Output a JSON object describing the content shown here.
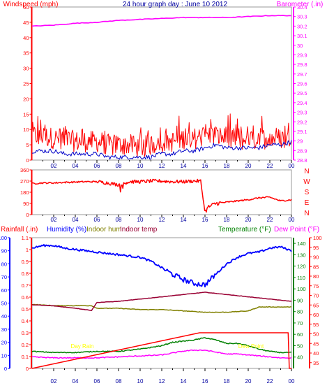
{
  "title": "24 hour graph day : June 10 2012",
  "colors": {
    "background": "#ffffff",
    "frame": "#9a9a9a",
    "wind": "#ff0000",
    "gust_base": "#0000c8",
    "barometer": "#ff00ff",
    "direction": "#ff0000",
    "rain_axis": "#ff0000",
    "humidity": "#0000ff",
    "indoor_hum": "#808000",
    "indoor_temp": "#990033",
    "temperature": "#008000",
    "dewpoint": "#ff00ff",
    "rain_rate": "#ff0000",
    "day_label": "#ffff00",
    "blue_axis": "#0000ff"
  },
  "chart_data": [
    {
      "type": "line",
      "name": "wind-barometer",
      "title": "24 hour graph day : June 10 2012",
      "xlabel": "",
      "ylabel_left": "Windspeed (mph)",
      "ylabel_right": "Barometer (.in)",
      "x_ticks": [
        "02",
        "04",
        "06",
        "08",
        "10",
        "12",
        "14",
        "16",
        "18",
        "20",
        "22",
        "00"
      ],
      "left_ylim": [
        0,
        50
      ],
      "left_ticks": [
        "0",
        "5",
        "10",
        "15",
        "20",
        "25",
        "30",
        "35",
        "40",
        "45",
        "50"
      ],
      "right_ylim": [
        28.8,
        30.4
      ],
      "right_ticks": [
        "28.8",
        "28.9",
        "29",
        "29.1",
        "29.2",
        "29.3",
        "29.4",
        "29.5",
        "29.6",
        "29.7",
        "29.8",
        "29.9",
        "30",
        "30.1",
        "30.2",
        "30.3",
        "30.4"
      ],
      "series": [
        {
          "name": "Windspeed (mph)",
          "x": [
            0,
            1,
            2,
            3,
            4,
            5,
            6,
            7,
            8,
            9,
            10,
            11,
            12,
            13,
            14,
            15,
            16,
            17,
            18,
            19,
            20,
            21,
            22,
            23,
            24
          ],
          "values": [
            7,
            7,
            6,
            6,
            5,
            5,
            5,
            4,
            4,
            4,
            3,
            4,
            5,
            5,
            6,
            6,
            7,
            7,
            6,
            6,
            5,
            6,
            6,
            6,
            7
          ]
        },
        {
          "name": "Windspeed base",
          "x": [
            0,
            1,
            2,
            3,
            4,
            5,
            6,
            7,
            8,
            9,
            10,
            11,
            12,
            13,
            14,
            15,
            16,
            17,
            18,
            19,
            20,
            21,
            22,
            23,
            24
          ],
          "values": [
            3,
            3,
            3,
            2,
            2,
            2,
            2,
            1,
            1,
            1,
            1,
            1,
            2,
            2,
            3,
            3,
            4,
            5,
            4,
            4,
            4,
            4,
            5,
            5,
            6
          ]
        },
        {
          "name": "Barometer (.in)",
          "x": [
            0,
            2,
            4,
            6,
            8,
            10,
            12,
            14,
            16,
            18,
            20,
            22,
            24
          ],
          "values": [
            30.2,
            30.21,
            30.23,
            30.24,
            30.26,
            30.27,
            30.28,
            30.29,
            30.29,
            30.29,
            30.3,
            30.31,
            30.31
          ]
        }
      ]
    },
    {
      "type": "line",
      "name": "wind-direction",
      "x_ticks": [
        "02",
        "04",
        "06",
        "08",
        "10",
        "12",
        "14",
        "16",
        "18",
        "20",
        "22",
        "00"
      ],
      "left_ylim": [
        0,
        360
      ],
      "left_ticks": [
        "0",
        "90",
        "180",
        "270",
        "360"
      ],
      "right_labels": [
        "N",
        "W",
        "S",
        "E",
        "N"
      ],
      "series": [
        {
          "name": "Direction",
          "x": [
            0,
            1,
            2,
            3,
            4,
            5,
            6,
            7,
            8,
            9,
            10,
            11,
            12,
            13,
            14,
            15,
            15.6,
            16,
            16.3,
            17,
            18,
            19,
            20,
            21,
            22,
            23,
            24
          ],
          "values": [
            250,
            255,
            255,
            260,
            262,
            265,
            265,
            255,
            240,
            265,
            265,
            270,
            270,
            265,
            265,
            270,
            270,
            20,
            60,
            90,
            100,
            110,
            120,
            135,
            140,
            110,
            120
          ]
        }
      ]
    },
    {
      "type": "line",
      "name": "rain-humidity-temperature",
      "x_ticks": [
        "02",
        "04",
        "06",
        "08",
        "10",
        "12",
        "14",
        "16",
        "18",
        "20",
        "22",
        "00"
      ],
      "labels": {
        "rainfall": "Rainfall (.in)",
        "humidity": "Humidity (%)",
        "indoor_hum": "Indoor hum",
        "indoor_temp": "Indoor temp",
        "temperature": "Temperature (°F)",
        "dewpoint": "Dew Point (°F)"
      },
      "axes": {
        "humidity": {
          "range": [
            0,
            100
          ],
          "ticks": [
            "0",
            "10",
            "20",
            "30",
            "40",
            "50",
            "60",
            "70",
            "80",
            "90",
            "100"
          ]
        },
        "rainfall": {
          "range": [
            0,
            1.1
          ],
          "ticks": [
            "0",
            "0.1",
            "0.2",
            "0.3",
            "0.4",
            "0.5",
            "0.6",
            "0.7",
            "0.8",
            "0.9",
            "1",
            "1.1"
          ]
        },
        "temperature": {
          "range": [
            30,
            145
          ],
          "ticks": [
            "40",
            "50",
            "60",
            "70",
            "80",
            "90",
            "100",
            "110",
            "120",
            "130",
            "140"
          ]
        },
        "dewpoint": {
          "range": [
            32,
            100
          ],
          "ticks": [
            "35",
            "40",
            "45",
            "50",
            "55",
            "60",
            "65",
            "70",
            "75",
            "80",
            "85",
            "90",
            "95",
            "100"
          ]
        }
      },
      "annotations": [
        "Day Rain",
        "Dew Point"
      ],
      "series": [
        {
          "name": "Humidity (%)",
          "axis": "humidity",
          "x": [
            0,
            1,
            2,
            3,
            4,
            5,
            6,
            7,
            8,
            9,
            10,
            11,
            12,
            13,
            14,
            15,
            16,
            17,
            18,
            19,
            20,
            21,
            22,
            23,
            24
          ],
          "values": [
            92,
            94,
            94,
            92,
            91,
            90,
            89,
            88,
            87,
            86,
            85,
            82,
            77,
            72,
            68,
            65,
            64,
            72,
            80,
            85,
            88,
            89,
            92,
            93,
            90
          ]
        },
        {
          "name": "Indoor hum",
          "axis": "humidity",
          "x": [
            0,
            2,
            4,
            5.5,
            6,
            8,
            10,
            12,
            14,
            16,
            18,
            20,
            21,
            22,
            24
          ],
          "values": [
            49,
            48,
            48,
            48,
            46,
            46,
            45,
            45,
            44,
            43,
            43,
            44,
            47,
            47,
            47
          ]
        },
        {
          "name": "Indoor temp",
          "axis": "temperature",
          "x": [
            0,
            2,
            4,
            5.5,
            6,
            8,
            10,
            12,
            14,
            16,
            18,
            20,
            22,
            24
          ],
          "values": [
            86,
            85,
            83,
            81,
            88,
            89,
            91,
            93,
            95,
            97,
            95,
            93,
            91,
            89
          ]
        },
        {
          "name": "Temperature (°F)",
          "axis": "temperature",
          "x": [
            0,
            2,
            4,
            6,
            8,
            10,
            12,
            13,
            14,
            15,
            16,
            17,
            18,
            19,
            20,
            21,
            22,
            23,
            24
          ],
          "values": [
            45,
            44,
            44,
            45,
            45,
            47,
            50,
            53,
            54,
            55,
            57,
            55,
            52,
            52,
            50,
            47,
            45,
            44,
            44
          ]
        },
        {
          "name": "Dew Point (°F)",
          "axis": "dewpoint",
          "x": [
            0,
            2,
            4,
            6,
            8,
            10,
            12,
            13,
            14,
            15,
            16,
            17,
            18,
            19,
            20,
            21,
            22,
            23,
            24
          ],
          "values": [
            38,
            37.5,
            37.5,
            37.5,
            38,
            38.5,
            39,
            40,
            41,
            41.5,
            41.5,
            40.5,
            39.5,
            39.5,
            39,
            38.5,
            38,
            37.5,
            37.5
          ]
        },
        {
          "name": "Rainfall (.in)",
          "axis": "rainfall",
          "x": [
            0,
            15.5,
            23.7,
            23.8,
            24
          ],
          "values": [
            0,
            0.3,
            0.3,
            0,
            0
          ]
        }
      ]
    }
  ]
}
